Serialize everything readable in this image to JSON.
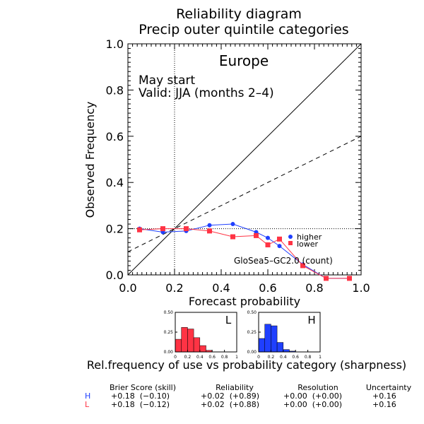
{
  "title": "Reliability diagram",
  "subtitle": "Precip outer quintile categories",
  "region": "Europe",
  "start_label": "May start",
  "valid_label": "Valid: JJA (months 2–4)",
  "model_label": "GloSea5–GC2.0 (count)",
  "sharpness_title": "Rel.frequency of use vs probability category (sharpness)",
  "colors": {
    "higher": "#1f3fff",
    "lower": "#ff3344"
  },
  "chart_data": [
    {
      "type": "line",
      "xlabel": "Forecast probability",
      "ylabel": "Observed Frequency",
      "xlim": [
        0,
        1
      ],
      "ylim": [
        0,
        1
      ],
      "xticks": [
        "0.0",
        "0.2",
        "0.4",
        "0.6",
        "0.8",
        "1.0"
      ],
      "yticks": [
        "0.0",
        "0.2",
        "0.4",
        "0.6",
        "0.8",
        "1.0"
      ],
      "climatology": 0.2,
      "no_skill_line": [
        [
          0,
          0.1
        ],
        [
          1,
          0.6
        ]
      ],
      "diagonal": [
        [
          0,
          0
        ],
        [
          1,
          1
        ]
      ],
      "legend_position": "lower-right",
      "series": [
        {
          "name": "higher",
          "color": "#1f3fff",
          "marker": "circle",
          "x": [
            0.05,
            0.15,
            0.25,
            0.35,
            0.45,
            0.55,
            0.6,
            0.65,
            0.75,
            0.85,
            0.95
          ],
          "y": [
            0.2,
            0.185,
            0.19,
            0.215,
            0.22,
            0.185,
            0.16,
            0.125,
            0.045,
            -0.015,
            -0.015
          ]
        },
        {
          "name": "lower",
          "color": "#ff3344",
          "marker": "square",
          "x": [
            0.05,
            0.15,
            0.25,
            0.35,
            0.45,
            0.55,
            0.6,
            0.65,
            0.75,
            0.85,
            0.95
          ],
          "y": [
            0.195,
            0.2,
            0.2,
            0.19,
            0.165,
            0.17,
            0.13,
            0.155,
            0.04,
            -0.015,
            -0.015
          ]
        }
      ]
    },
    {
      "type": "bar",
      "label": "L",
      "color": "#ff3344",
      "xlim": [
        0,
        1
      ],
      "ylim": [
        0,
        0.5
      ],
      "xticks": [
        "0",
        "0.2",
        "0.4",
        "0.6",
        "0.8",
        "1"
      ],
      "yticks": [
        "0.00",
        "0.25",
        "0.50"
      ],
      "bin_width": 0.1,
      "bins": [
        0,
        0.1,
        0.2,
        0.3,
        0.4,
        0.5,
        0.6,
        0.7,
        0.8,
        0.9
      ],
      "values": [
        0.16,
        0.31,
        0.29,
        0.18,
        0.08,
        0.02,
        0.0,
        0.0,
        0.0,
        0.0
      ]
    },
    {
      "type": "bar",
      "label": "H",
      "color": "#1f3fff",
      "xlim": [
        0,
        1
      ],
      "ylim": [
        0,
        0.5
      ],
      "xticks": [
        "0",
        "0.2",
        "0.4",
        "0.6",
        "0.8",
        "1"
      ],
      "yticks": [
        "0.00",
        "0.25",
        "0.50"
      ],
      "bin_width": 0.1,
      "bins": [
        0,
        0.1,
        0.2,
        0.3,
        0.4,
        0.5,
        0.6,
        0.7,
        0.8,
        0.9
      ],
      "values": [
        0.17,
        0.35,
        0.33,
        0.12,
        0.03,
        0.01,
        0.0,
        0.0,
        0.0,
        0.0
      ]
    }
  ],
  "stats": {
    "headers": [
      "Brier Score (skill)",
      "Reliability",
      "Resolution",
      "Uncertainty"
    ],
    "rows": [
      {
        "label": "H",
        "color": "#1f3fff",
        "cells": [
          "+0.18  (−0.10)",
          "+0.02  (+0.89)",
          "+0.00  (+0.00)",
          "+0.16"
        ]
      },
      {
        "label": "L",
        "color": "#ff3344",
        "cells": [
          "+0.18  (−0.12)",
          "+0.02  (+0.88)",
          "+0.00  (+0.00)",
          "+0.16"
        ]
      }
    ]
  }
}
